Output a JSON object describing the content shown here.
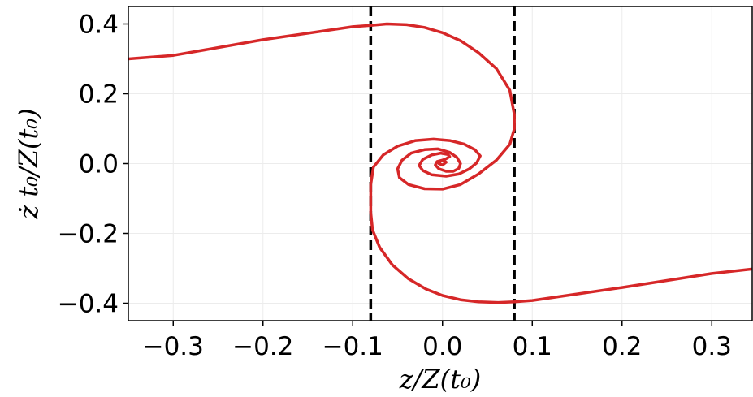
{
  "chart_data": {
    "type": "line",
    "xlabel": "z/Z(t₀)",
    "ylabel": "ż t₀/Z(t₀)",
    "xlim": [
      -0.35,
      0.345
    ],
    "ylim": [
      -0.45,
      0.45
    ],
    "xticks": [
      {
        "value": -0.3,
        "label": "−0.3"
      },
      {
        "value": -0.2,
        "label": "−0.2"
      },
      {
        "value": -0.1,
        "label": "−0.1"
      },
      {
        "value": 0.0,
        "label": "0.0"
      },
      {
        "value": 0.1,
        "label": "0.1"
      },
      {
        "value": 0.2,
        "label": "0.2"
      },
      {
        "value": 0.3,
        "label": "0.3"
      }
    ],
    "yticks": [
      {
        "value": -0.4,
        "label": "−0.4"
      },
      {
        "value": -0.2,
        "label": "−0.2"
      },
      {
        "value": 0.0,
        "label": "0.0"
      },
      {
        "value": 0.2,
        "label": "0.2"
      },
      {
        "value": 0.4,
        "label": "0.4"
      }
    ],
    "grid": true,
    "vlines": [
      {
        "x": -0.08,
        "style": "dashed",
        "color": "#000000"
      },
      {
        "x": 0.08,
        "style": "dashed",
        "color": "#000000"
      }
    ],
    "series": [
      {
        "color": "#d62728",
        "x": [
          -0.35,
          -0.3,
          -0.2,
          -0.1,
          -0.08,
          -0.062,
          -0.04,
          -0.02,
          0.0,
          0.02,
          0.04,
          0.06,
          0.075,
          0.08,
          0.08,
          0.075,
          0.06,
          0.04,
          0.02,
          0.0,
          -0.02,
          -0.038,
          -0.048,
          -0.05,
          -0.045,
          -0.035,
          -0.02,
          -0.005,
          0.008,
          0.016,
          0.02,
          0.018,
          0.012,
          0.004,
          -0.004,
          -0.008,
          -0.006,
          0.0,
          0.004,
          0.0,
          -0.004,
          -0.002,
          0.004,
          0.008,
          0.006,
          -0.002,
          -0.012,
          -0.022,
          -0.026,
          -0.022,
          -0.012,
          0.004,
          0.018,
          0.03,
          0.038,
          0.042,
          0.036,
          0.024,
          0.008,
          -0.01,
          -0.03,
          -0.05,
          -0.066,
          -0.077,
          -0.08,
          -0.08,
          -0.078,
          -0.07,
          -0.056,
          -0.038,
          -0.018,
          0.0,
          0.02,
          0.04,
          0.062,
          0.08,
          0.1,
          0.2,
          0.3,
          0.345
        ],
        "y": [
          0.3,
          0.31,
          0.355,
          0.392,
          0.396,
          0.4,
          0.398,
          0.39,
          0.375,
          0.352,
          0.318,
          0.272,
          0.21,
          0.14,
          0.1,
          0.055,
          0.01,
          -0.03,
          -0.06,
          -0.073,
          -0.072,
          -0.06,
          -0.04,
          -0.015,
          0.01,
          0.03,
          0.04,
          0.042,
          0.032,
          0.018,
          0.0,
          -0.014,
          -0.022,
          -0.022,
          -0.015,
          -0.004,
          0.006,
          0.01,
          0.004,
          -0.004,
          0.0,
          0.008,
          0.014,
          0.02,
          0.026,
          0.03,
          0.025,
          0.012,
          -0.005,
          -0.02,
          -0.032,
          -0.036,
          -0.03,
          -0.015,
          0.002,
          0.022,
          0.04,
          0.056,
          0.066,
          0.07,
          0.066,
          0.05,
          0.025,
          -0.01,
          -0.06,
          -0.14,
          -0.19,
          -0.24,
          -0.29,
          -0.33,
          -0.36,
          -0.378,
          -0.39,
          -0.396,
          -0.398,
          -0.396,
          -0.392,
          -0.355,
          -0.315,
          -0.302
        ]
      }
    ]
  }
}
